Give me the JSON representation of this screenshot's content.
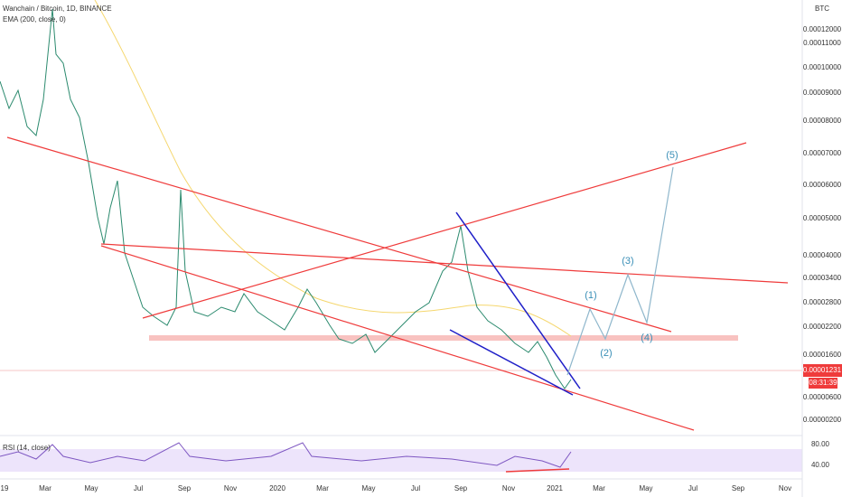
{
  "header": {
    "symbol": "Wanchain / Bitcoin, 1D, BINANCE",
    "indicator": "EMA (200, close, 0)"
  },
  "price_axis": {
    "unit": "BTC",
    "labels": [
      "0.00012000",
      "0.00011000",
      "0.00010000",
      "0.00009000",
      "0.00008000",
      "0.00007000",
      "0.00006000",
      "0.00005000",
      "0.00004000",
      "0.00003400",
      "0.00002800",
      "0.00002200",
      "0.00001600",
      "0.00000600",
      "0.00000200"
    ]
  },
  "price_tag": {
    "price": "0.00001231",
    "countdown": "08:31:39"
  },
  "time_axis": [
    "19",
    "Mar",
    "May",
    "Jul",
    "Sep",
    "Nov",
    "2020",
    "Mar",
    "May",
    "Jul",
    "Sep",
    "Nov",
    "2021",
    "Mar",
    "May",
    "Jul",
    "Sep",
    "Nov"
  ],
  "rsi": {
    "title": "RSI (14, close)",
    "labels": [
      "80.00",
      "40.00"
    ]
  },
  "wave_labels": [
    "(1)",
    "(2)",
    "(3)",
    "(4)",
    "(5)"
  ]
}
